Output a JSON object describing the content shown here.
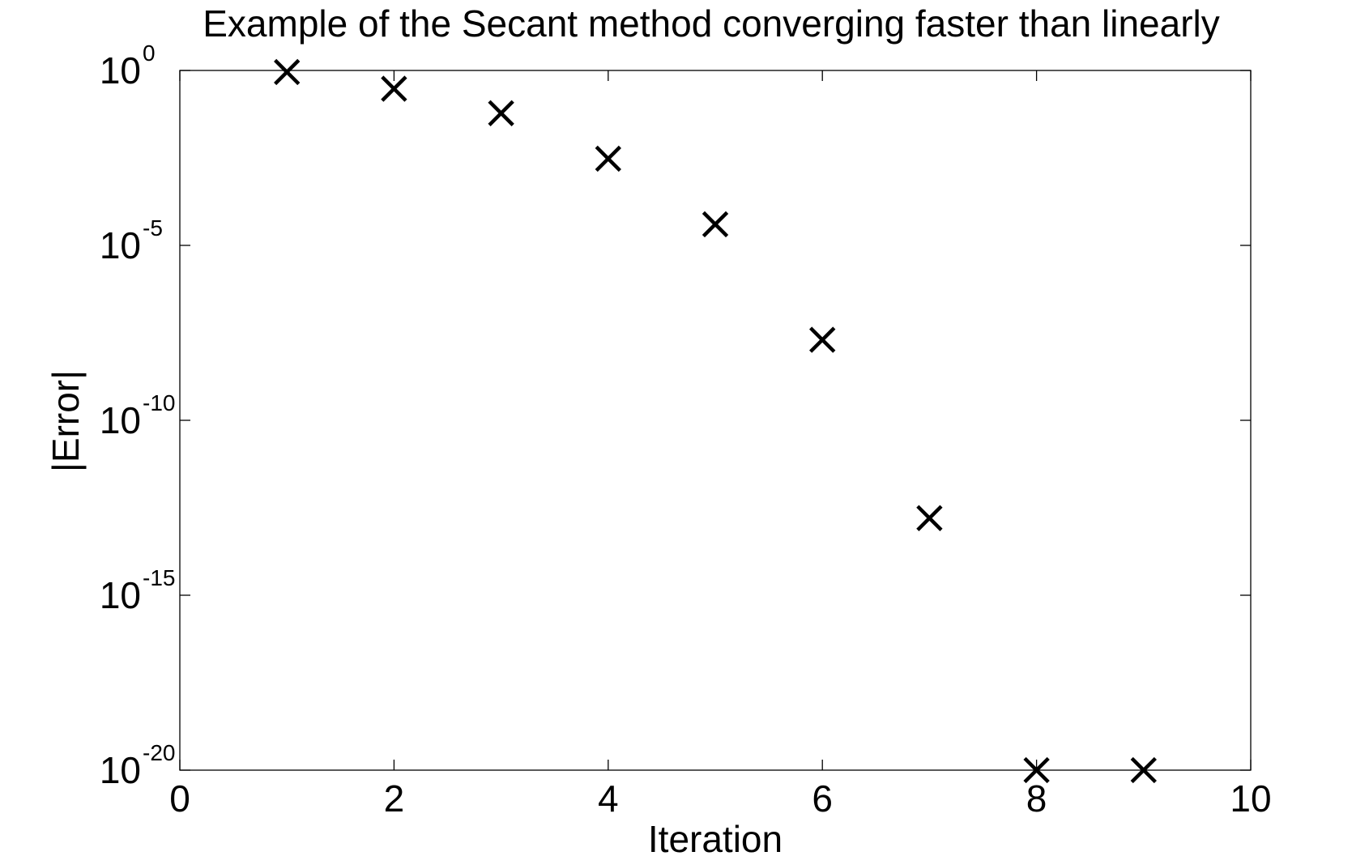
{
  "chart_data": {
    "type": "scatter",
    "title": "Example of the Secant method converging faster than linearly",
    "xlabel": "Iteration",
    "ylabel": "|Error|",
    "xlim": [
      0,
      10
    ],
    "ylim": [
      1e-20,
      1
    ],
    "yscale": "log",
    "grid": false,
    "marker": "x",
    "marker_color": "#000000",
    "x_ticks": [
      {
        "value": 0,
        "label": "0"
      },
      {
        "value": 2,
        "label": "2"
      },
      {
        "value": 4,
        "label": "4"
      },
      {
        "value": 6,
        "label": "6"
      },
      {
        "value": 8,
        "label": "8"
      },
      {
        "value": 10,
        "label": "10"
      }
    ],
    "y_ticks": [
      {
        "exponent": 0,
        "base": "10",
        "exp_label": "0"
      },
      {
        "exponent": -5,
        "base": "10",
        "exp_label": "-5"
      },
      {
        "exponent": -10,
        "base": "10",
        "exp_label": "-10"
      },
      {
        "exponent": -15,
        "base": "10",
        "exp_label": "-15"
      },
      {
        "exponent": -20,
        "base": "10",
        "exp_label": "-20"
      }
    ],
    "points": [
      {
        "x": 1,
        "y": 0.9
      },
      {
        "x": 2,
        "y": 0.3
      },
      {
        "x": 3,
        "y": 0.06
      },
      {
        "x": 4,
        "y": 0.003
      },
      {
        "x": 5,
        "y": 4e-05
      },
      {
        "x": 6,
        "y": 2e-08
      },
      {
        "x": 7,
        "y": 1.6e-13
      },
      {
        "x": 8,
        "y": 1e-20
      },
      {
        "x": 9,
        "y": 1e-20
      }
    ]
  }
}
